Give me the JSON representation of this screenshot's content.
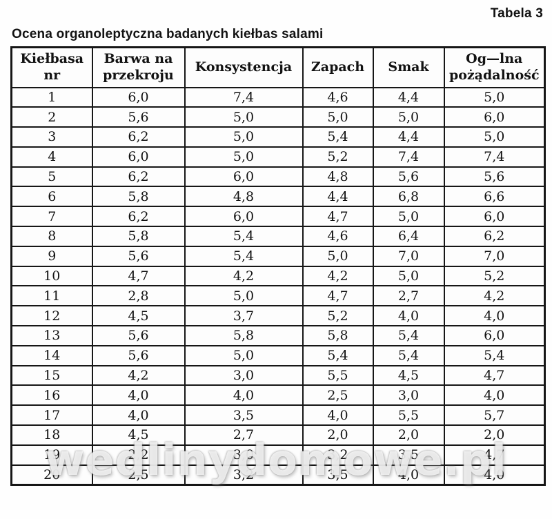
{
  "page": {
    "corner_label": "Tabela 3",
    "title": "Ocena organoleptyczna badanych kiełbas salami",
    "watermark": "wedlinydomowe.pl"
  },
  "table": {
    "columns": [
      "Kiełbasa\nnr",
      "Barwa na\nprzekroju",
      "Konsystencja",
      "Zapach",
      "Smak",
      "Og—lna\npożądalność"
    ],
    "rows": [
      [
        "1",
        "6,0",
        "7,4",
        "4,6",
        "4,4",
        "5,0"
      ],
      [
        "2",
        "5,6",
        "5,0",
        "5,0",
        "5,0",
        "6,0"
      ],
      [
        "3",
        "6,2",
        "5,0",
        "5,4",
        "4,4",
        "5,0"
      ],
      [
        "4",
        "6,0",
        "5,0",
        "5,2",
        "7,4",
        "7,4"
      ],
      [
        "5",
        "6,2",
        "6,0",
        "4,8",
        "5,6",
        "5,6"
      ],
      [
        "6",
        "5,8",
        "4,8",
        "4,4",
        "6,8",
        "6,6"
      ],
      [
        "7",
        "6,2",
        "6,0",
        "4,7",
        "5,0",
        "6,0"
      ],
      [
        "8",
        "5,8",
        "5,4",
        "4,6",
        "6,4",
        "6,2"
      ],
      [
        "9",
        "5,6",
        "5,4",
        "5,0",
        "7,0",
        "7,0"
      ],
      [
        "10",
        "4,7",
        "4,2",
        "4,2",
        "5,0",
        "5,2"
      ],
      [
        "11",
        "2,8",
        "5,0",
        "4,7",
        "2,7",
        "4,2"
      ],
      [
        "12",
        "4,5",
        "3,7",
        "5,2",
        "4,0",
        "4,0"
      ],
      [
        "13",
        "5,6",
        "5,8",
        "5,8",
        "5,4",
        "6,0"
      ],
      [
        "14",
        "5,6",
        "5,0",
        "5,4",
        "5,4",
        "5,4"
      ],
      [
        "15",
        "4,2",
        "3,0",
        "5,5",
        "4,5",
        "4,7"
      ],
      [
        "16",
        "4,0",
        "4,0",
        "2,5",
        "3,0",
        "4,0"
      ],
      [
        "17",
        "4,0",
        "3,5",
        "4,0",
        "5,5",
        "5,7"
      ],
      [
        "18",
        "4,5",
        "2,7",
        "2,0",
        "2,0",
        "2,0"
      ],
      [
        "19",
        "2,2",
        "3,0",
        "3,2",
        "3,5",
        "4,7"
      ],
      [
        "20",
        "2,5",
        "3,2",
        "3,5",
        "4,0",
        "4,0"
      ]
    ]
  },
  "colors": {
    "border": "#161616",
    "text": "#121212",
    "background": "#fefefe",
    "watermark": "rgba(255,255,255,0.78)"
  }
}
